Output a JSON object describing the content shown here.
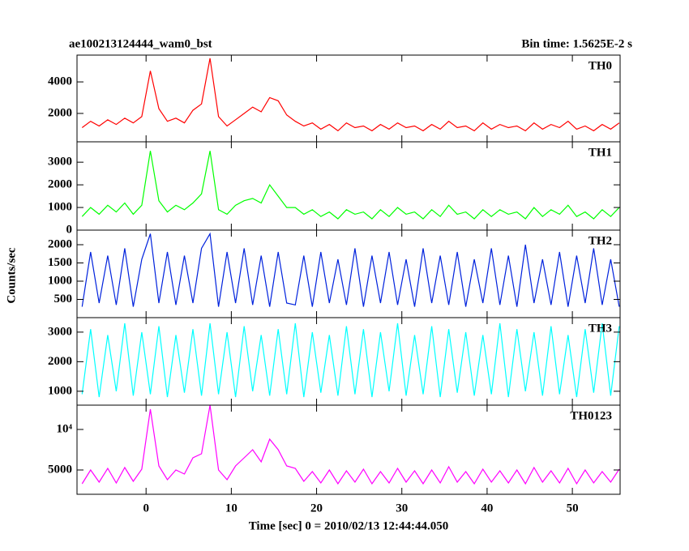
{
  "chart_data": [
    {
      "type": "line",
      "title": "ae100213124444_wam0_bst",
      "subtitle": "Bin time: 1.5625E-2 s",
      "x": [
        -7.5,
        -6.5,
        -5.5,
        -4.5,
        -3.5,
        -2.5,
        -1.5,
        -0.5,
        0.5,
        1.5,
        2.5,
        3.5,
        4.5,
        5.5,
        6.5,
        7.5,
        8.5,
        9.5,
        10.5,
        11.5,
        12.5,
        13.5,
        14.5,
        15.5,
        16.5,
        17.5,
        18.5,
        19.5,
        20.5,
        21.5,
        22.5,
        23.5,
        24.5,
        25.5,
        26.5,
        27.5,
        28.5,
        29.5,
        30.5,
        31.5,
        32.5,
        33.5,
        34.5,
        35.5,
        36.5,
        37.5,
        38.5,
        39.5,
        40.5,
        41.5,
        42.5,
        43.5,
        44.5,
        45.5,
        46.5,
        47.5,
        48.5,
        49.5,
        50.5,
        51.5,
        52.5,
        53.5,
        54.5,
        55.5
      ],
      "series": [
        {
          "name": "TH0",
          "color": "#ff0000",
          "values": [
            1100,
            1500,
            1200,
            1600,
            1300,
            1700,
            1400,
            1800,
            4700,
            2300,
            1500,
            1700,
            1400,
            2200,
            2600,
            5500,
            1800,
            1200,
            1600,
            2000,
            2400,
            2100,
            3000,
            2800,
            1900,
            1500,
            1200,
            1400,
            1000,
            1300,
            900,
            1400,
            1100,
            1200,
            900,
            1300,
            1000,
            1400,
            1100,
            1200,
            900,
            1300,
            1000,
            1500,
            1100,
            1200,
            900,
            1400,
            1000,
            1300,
            1100,
            1200,
            900,
            1400,
            1000,
            1300,
            1100,
            1500,
            1000,
            1200,
            900,
            1300,
            1000,
            1400
          ]
        }
      ],
      "xlim": [
        -8.1,
        55.6
      ],
      "xticks": [
        0,
        10,
        20,
        30,
        40,
        50
      ],
      "ylim": [
        200,
        5700
      ],
      "yticks": [
        2000,
        4000
      ]
    },
    {
      "type": "line",
      "x": [
        -7.5,
        -6.5,
        -5.5,
        -4.5,
        -3.5,
        -2.5,
        -1.5,
        -0.5,
        0.5,
        1.5,
        2.5,
        3.5,
        4.5,
        5.5,
        6.5,
        7.5,
        8.5,
        9.5,
        10.5,
        11.5,
        12.5,
        13.5,
        14.5,
        15.5,
        16.5,
        17.5,
        18.5,
        19.5,
        20.5,
        21.5,
        22.5,
        23.5,
        24.5,
        25.5,
        26.5,
        27.5,
        28.5,
        29.5,
        30.5,
        31.5,
        32.5,
        33.5,
        34.5,
        35.5,
        36.5,
        37.5,
        38.5,
        39.5,
        40.5,
        41.5,
        42.5,
        43.5,
        44.5,
        45.5,
        46.5,
        47.5,
        48.5,
        49.5,
        50.5,
        51.5,
        52.5,
        53.5,
        54.5,
        55.5
      ],
      "series": [
        {
          "name": "TH1",
          "color": "#00ff00",
          "values": [
            600,
            1000,
            700,
            1100,
            800,
            1200,
            700,
            1100,
            3500,
            1300,
            800,
            1100,
            900,
            1200,
            1600,
            3500,
            900,
            700,
            1100,
            1300,
            1400,
            1200,
            2000,
            1500,
            1000,
            1000,
            700,
            900,
            600,
            800,
            500,
            900,
            700,
            800,
            500,
            900,
            600,
            1000,
            700,
            800,
            500,
            900,
            600,
            1100,
            700,
            800,
            500,
            900,
            600,
            900,
            700,
            800,
            500,
            1000,
            600,
            900,
            700,
            1100,
            600,
            800,
            500,
            900,
            600,
            1000
          ]
        }
      ],
      "xlim": [
        -8.1,
        55.6
      ],
      "xticks": [
        0,
        10,
        20,
        30,
        40,
        50
      ],
      "ylim": [
        0,
        3900
      ],
      "yticks": [
        0,
        1000,
        2000,
        3000
      ]
    },
    {
      "type": "line",
      "ylabel": "Counts/sec",
      "x": [
        -7.5,
        -6.5,
        -5.5,
        -4.5,
        -3.5,
        -2.5,
        -1.5,
        -0.5,
        0.5,
        1.5,
        2.5,
        3.5,
        4.5,
        5.5,
        6.5,
        7.5,
        8.5,
        9.5,
        10.5,
        11.5,
        12.5,
        13.5,
        14.5,
        15.5,
        16.5,
        17.5,
        18.5,
        19.5,
        20.5,
        21.5,
        22.5,
        23.5,
        24.5,
        25.5,
        26.5,
        27.5,
        28.5,
        29.5,
        30.5,
        31.5,
        32.5,
        33.5,
        34.5,
        35.5,
        36.5,
        37.5,
        38.5,
        39.5,
        40.5,
        41.5,
        42.5,
        43.5,
        44.5,
        45.5,
        46.5,
        47.5,
        48.5,
        49.5,
        50.5,
        51.5,
        52.5,
        53.5,
        54.5,
        55.5
      ],
      "series": [
        {
          "name": "TH2",
          "color": "#0022dd",
          "values": [
            300,
            1800,
            400,
            1700,
            350,
            1900,
            300,
            1600,
            2300,
            400,
            1800,
            350,
            1700,
            400,
            1900,
            2300,
            300,
            1800,
            400,
            1900,
            350,
            1700,
            300,
            1800,
            400,
            350,
            1700,
            300,
            1800,
            400,
            1600,
            350,
            1900,
            300,
            1700,
            400,
            1800,
            350,
            1600,
            300,
            1900,
            400,
            1700,
            350,
            1800,
            300,
            1600,
            400,
            1900,
            350,
            1700,
            300,
            2000,
            400,
            1600,
            350,
            1800,
            300,
            1700,
            400,
            1900,
            350,
            1600,
            300
          ]
        }
      ],
      "xlim": [
        -8.1,
        55.6
      ],
      "xticks": [
        0,
        10,
        20,
        30,
        40,
        50
      ],
      "ylim": [
        0,
        2400
      ],
      "yticks": [
        500,
        1000,
        1500,
        2000
      ]
    },
    {
      "type": "line",
      "x": [
        -7.5,
        -6.5,
        -5.5,
        -4.5,
        -3.5,
        -2.5,
        -1.5,
        -0.5,
        0.5,
        1.5,
        2.5,
        3.5,
        4.5,
        5.5,
        6.5,
        7.5,
        8.5,
        9.5,
        10.5,
        11.5,
        12.5,
        13.5,
        14.5,
        15.5,
        16.5,
        17.5,
        18.5,
        19.5,
        20.5,
        21.5,
        22.5,
        23.5,
        24.5,
        25.5,
        26.5,
        27.5,
        28.5,
        29.5,
        30.5,
        31.5,
        32.5,
        33.5,
        34.5,
        35.5,
        36.5,
        37.5,
        38.5,
        39.5,
        40.5,
        41.5,
        42.5,
        43.5,
        44.5,
        45.5,
        46.5,
        47.5,
        48.5,
        49.5,
        50.5,
        51.5,
        52.5,
        53.5,
        54.5,
        55.5
      ],
      "series": [
        {
          "name": "TH3",
          "color": "#00ffff",
          "values": [
            900,
            3100,
            800,
            2900,
            1000,
            3300,
            850,
            3000,
            900,
            3200,
            800,
            2900,
            950,
            3100,
            850,
            3300,
            900,
            3000,
            800,
            3200,
            1000,
            2900,
            850,
            3100,
            900,
            3300,
            800,
            3000,
            950,
            2900,
            850,
            3200,
            900,
            3100,
            800,
            3000,
            1000,
            3300,
            850,
            2900,
            900,
            3200,
            800,
            3100,
            950,
            3000,
            850,
            2900,
            900,
            3300,
            800,
            3100,
            1000,
            3000,
            850,
            3200,
            900,
            2900,
            800,
            3100,
            950,
            3300,
            850,
            3200
          ]
        }
      ],
      "xlim": [
        -8.1,
        55.6
      ],
      "xticks": [
        0,
        10,
        20,
        30,
        40,
        50
      ],
      "ylim": [
        530,
        3490
      ],
      "yticks": [
        1000,
        2000,
        3000
      ]
    },
    {
      "type": "line",
      "xlabel": "Time [sec] 0 = 2010/02/13 12:44:44.050",
      "x": [
        -7.5,
        -6.5,
        -5.5,
        -4.5,
        -3.5,
        -2.5,
        -1.5,
        -0.5,
        0.5,
        1.5,
        2.5,
        3.5,
        4.5,
        5.5,
        6.5,
        7.5,
        8.5,
        9.5,
        10.5,
        11.5,
        12.5,
        13.5,
        14.5,
        15.5,
        16.5,
        17.5,
        18.5,
        19.5,
        20.5,
        21.5,
        22.5,
        23.5,
        24.5,
        25.5,
        26.5,
        27.5,
        28.5,
        29.5,
        30.5,
        31.5,
        32.5,
        33.5,
        34.5,
        35.5,
        36.5,
        37.5,
        38.5,
        39.5,
        40.5,
        41.5,
        42.5,
        43.5,
        44.5,
        45.5,
        46.5,
        47.5,
        48.5,
        49.5,
        50.5,
        51.5,
        52.5,
        53.5,
        54.5,
        55.5
      ],
      "series": [
        {
          "name": "TH0123",
          "color": "#ff00ff",
          "values": [
            3300,
            5000,
            3500,
            5200,
            3400,
            5300,
            3600,
            5100,
            12500,
            5500,
            3800,
            5000,
            4500,
            6500,
            7000,
            13000,
            5000,
            3800,
            5500,
            6500,
            7500,
            6000,
            8800,
            7500,
            5500,
            5200,
            3600,
            4800,
            3400,
            5000,
            3300,
            4900,
            3500,
            5100,
            3300,
            4800,
            3400,
            5200,
            3500,
            4900,
            3300,
            5000,
            3400,
            5400,
            3500,
            4800,
            3300,
            5100,
            3500,
            4900,
            3400,
            5000,
            3300,
            5300,
            3500,
            4900,
            3400,
            5200,
            3300,
            5000,
            3400,
            4800,
            3500,
            5100
          ]
        }
      ],
      "xlim": [
        -8.1,
        55.6
      ],
      "xticks": [
        0,
        10,
        20,
        30,
        40,
        50
      ],
      "ylim": [
        2000,
        13000
      ],
      "yticks": [
        5000,
        {
          "value": 10000,
          "label": "10⁴"
        }
      ]
    }
  ]
}
